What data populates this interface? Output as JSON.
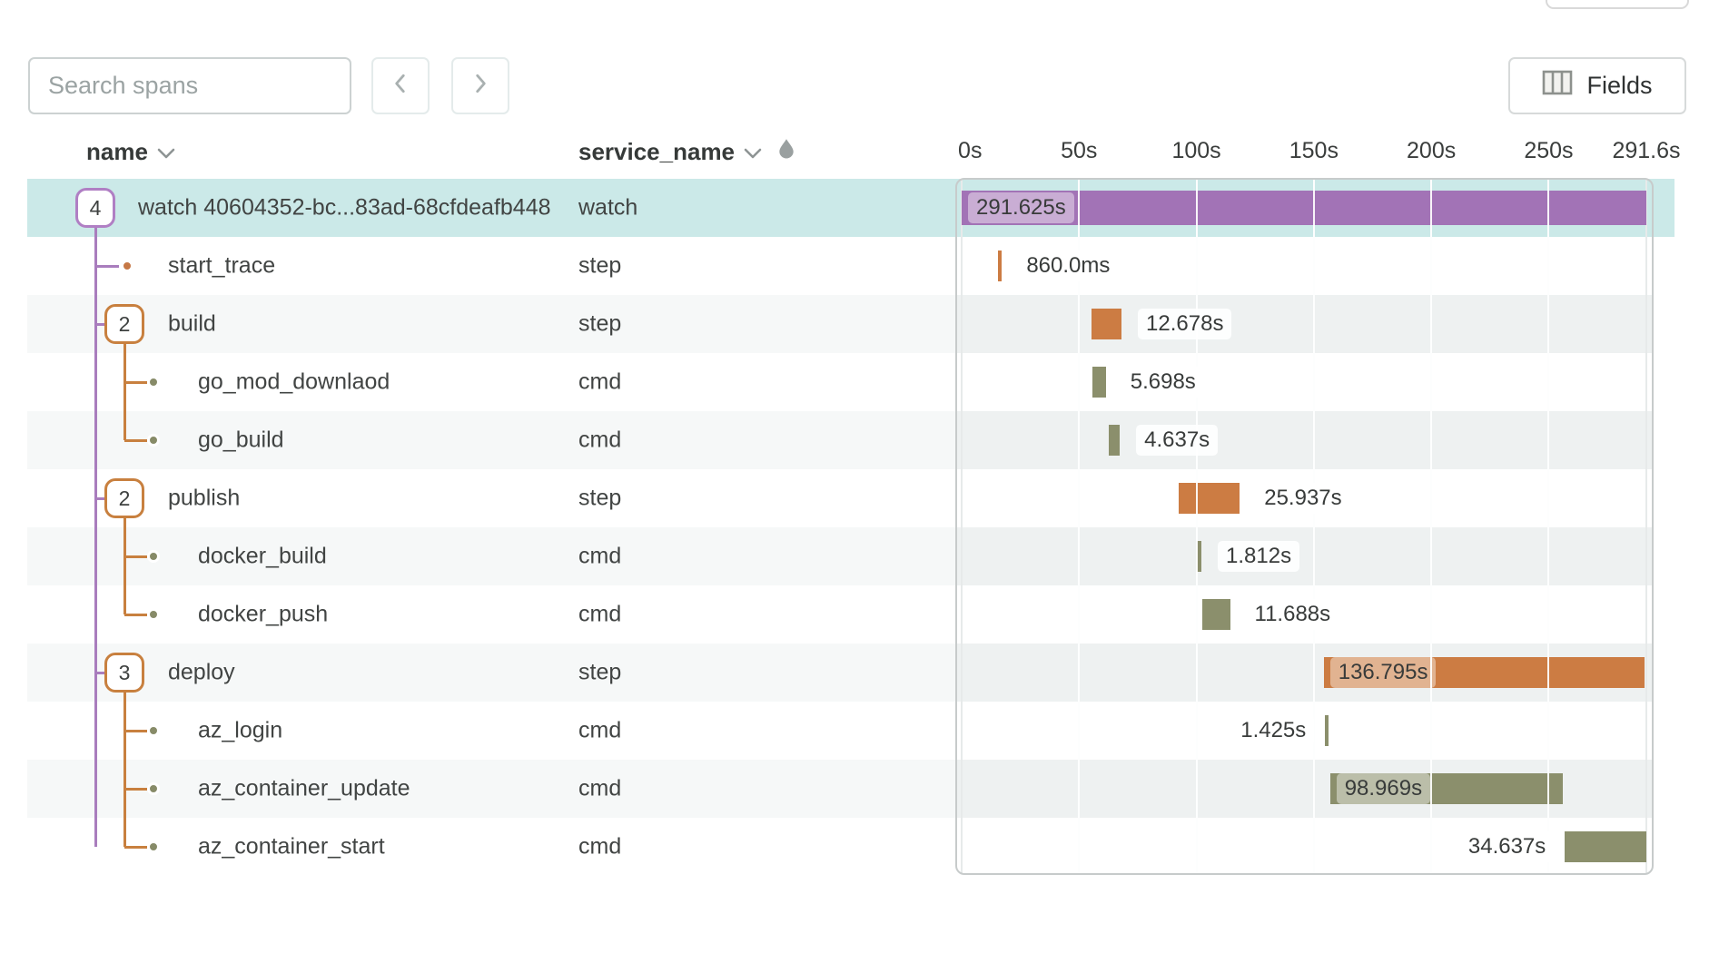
{
  "toolbar": {
    "search_placeholder": "Search spans",
    "fields_label": "Fields"
  },
  "header": {
    "name_label": "name",
    "service_label": "service_name"
  },
  "axis": {
    "total_seconds": 291.6,
    "ticks": [
      {
        "label": "0s",
        "t": 0
      },
      {
        "label": "50s",
        "t": 50
      },
      {
        "label": "100s",
        "t": 100
      },
      {
        "label": "150s",
        "t": 150
      },
      {
        "label": "200s",
        "t": 200
      },
      {
        "label": "250s",
        "t": 250
      },
      {
        "label": "291.6s",
        "t": 291.6
      }
    ]
  },
  "colors": {
    "selected_row": "#cbe9e8",
    "purple_bar": "#a273b6",
    "orange_bar": "#cc7c43",
    "olive_bar": "#8b8f6c",
    "tree_purple": "#a97dbd",
    "tree_orange": "#c8803f"
  },
  "rows": [
    {
      "name": "watch 40604352-bc...83ad-68cfdeafb448",
      "service": "watch",
      "level": 1,
      "badge": "4",
      "selected": true,
      "bar": {
        "color": "purple",
        "start_s": 0,
        "duration_s": 291.625,
        "label": "291.625s",
        "label_side": "inside"
      }
    },
    {
      "name": "start_trace",
      "service": "step",
      "level": 2,
      "dot": "orange",
      "bar": {
        "color": "orange",
        "start_s": 15.6,
        "duration_s": 0.86,
        "label": "860.0ms",
        "label_side": "right"
      }
    },
    {
      "name": "build",
      "service": "step",
      "level": 2,
      "badge": "2",
      "bar": {
        "color": "orange",
        "start_s": 55.4,
        "duration_s": 12.678,
        "label": "12.678s",
        "label_side": "right"
      }
    },
    {
      "name": "go_mod_downlaod",
      "service": "cmd",
      "level": 3,
      "dot": "olive",
      "bar": {
        "color": "olive",
        "start_s": 55.7,
        "duration_s": 5.698,
        "label": "5.698s",
        "label_side": "right"
      }
    },
    {
      "name": "go_build",
      "service": "cmd",
      "level": 3,
      "dot": "olive",
      "bar": {
        "color": "olive",
        "start_s": 62.7,
        "duration_s": 4.637,
        "label": "4.637s",
        "label_side": "right"
      }
    },
    {
      "name": "publish",
      "service": "step",
      "level": 2,
      "badge": "2",
      "bar": {
        "color": "orange",
        "start_s": 92.5,
        "duration_s": 25.937,
        "label": "25.937s",
        "label_side": "right"
      }
    },
    {
      "name": "docker_build",
      "service": "cmd",
      "level": 3,
      "dot": "olive",
      "bar": {
        "color": "olive",
        "start_s": 100.3,
        "duration_s": 1.812,
        "label": "1.812s",
        "label_side": "right"
      }
    },
    {
      "name": "docker_push",
      "service": "cmd",
      "level": 3,
      "dot": "olive",
      "bar": {
        "color": "olive",
        "start_s": 102.6,
        "duration_s": 11.688,
        "label": "11.688s",
        "label_side": "right"
      }
    },
    {
      "name": "deploy",
      "service": "step",
      "level": 2,
      "badge": "3",
      "bar": {
        "color": "orange",
        "start_s": 154.2,
        "duration_s": 136.795,
        "label": "136.795s",
        "label_side": "inside"
      }
    },
    {
      "name": "az_login",
      "service": "cmd",
      "level": 3,
      "dot": "olive",
      "bar": {
        "color": "olive",
        "start_s": 154.8,
        "duration_s": 1.425,
        "label": "1.425s",
        "label_side": "left"
      }
    },
    {
      "name": "az_container_update",
      "service": "cmd",
      "level": 3,
      "dot": "olive",
      "bar": {
        "color": "olive",
        "start_s": 156.9,
        "duration_s": 98.969,
        "label": "98.969s",
        "label_side": "inside"
      }
    },
    {
      "name": "az_container_start",
      "service": "cmd",
      "level": 3,
      "dot": "olive",
      "bar": {
        "color": "olive",
        "start_s": 256.9,
        "duration_s": 34.637,
        "label": "34.637s",
        "label_side": "left"
      }
    }
  ]
}
